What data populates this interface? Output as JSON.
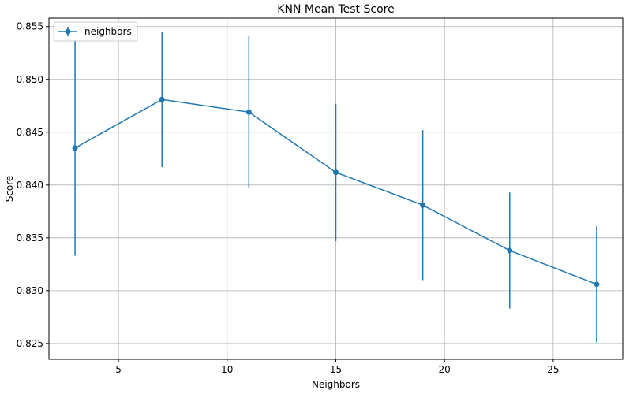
{
  "chart_data": {
    "type": "line",
    "title": "KNN Mean Test Score",
    "xlabel": "Neighbors",
    "ylabel": "Score",
    "xlim": [
      1.8,
      28.2
    ],
    "ylim": [
      0.8235,
      0.8558
    ],
    "xticks": [
      5,
      10,
      15,
      20,
      25
    ],
    "yticks": [
      0.825,
      0.83,
      0.835,
      0.84,
      0.845,
      0.85,
      0.855
    ],
    "grid": true,
    "legend_position": "top-left",
    "series": [
      {
        "name": "neighbors",
        "color": "#1f77b4",
        "marker": "circle",
        "x": [
          3,
          7,
          11,
          15,
          19,
          23,
          27
        ],
        "y": [
          0.8435,
          0.8481,
          0.8469,
          0.8412,
          0.8381,
          0.8338,
          0.8306
        ],
        "yerr": [
          0.0102,
          0.0064,
          0.0072,
          0.0065,
          0.0071,
          0.0055,
          0.0055
        ]
      }
    ]
  }
}
